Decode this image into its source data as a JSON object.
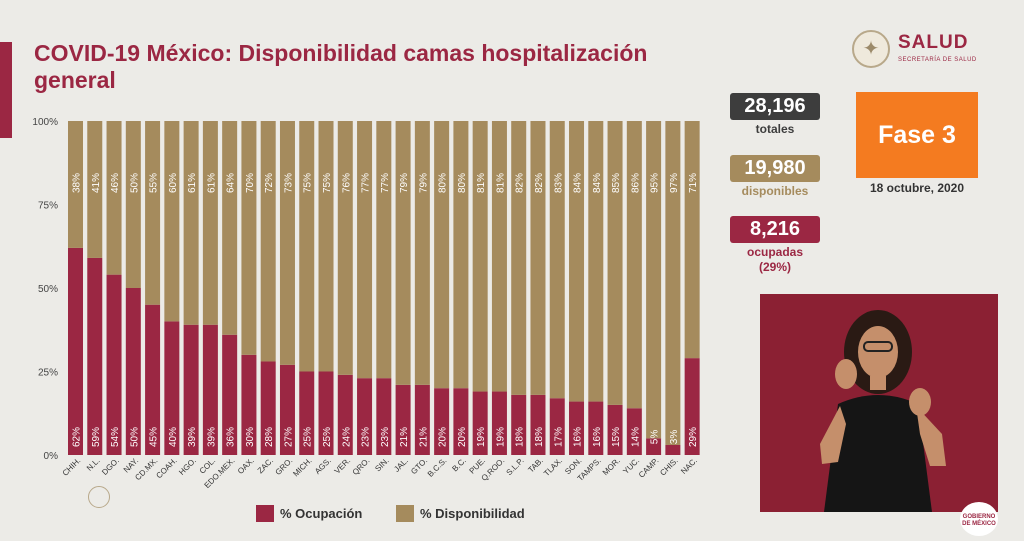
{
  "header": {
    "title": "COVID-19 México: Disponibilidad camas hospitalización general",
    "logo_name": "SALUD",
    "logo_sub": "SECRETARÍA DE SALUD"
  },
  "stats": {
    "totales_value": "28,196",
    "totales_label": "totales",
    "disponibles_value": "19,980",
    "disponibles_label": "disponibles",
    "ocupadas_value": "8,216",
    "ocupadas_label": "ocupadas",
    "ocupadas_pct": "(29%)"
  },
  "phase": {
    "label": "Fase 3",
    "date": "18 octubre, 2020"
  },
  "footer": {
    "emblem_text": "GOBIERNO DE MÉXICO"
  },
  "colors": {
    "ocupacion": "#9b2743",
    "disponibilidad": "#a58b5d",
    "accent_orange": "#f47b20",
    "dark_box": "#3d3d3d"
  },
  "chart_data": {
    "type": "bar",
    "stacked": true,
    "ylim": [
      0,
      100
    ],
    "yticks": [
      "0%",
      "25%",
      "50%",
      "75%",
      "100%"
    ],
    "categories": [
      "CHIH.",
      "N.L.",
      "DGO.",
      "NAY.",
      "CD.MX.",
      "COAH.",
      "HGO.",
      "COL.",
      "EDO.MEX.",
      "OAX.",
      "ZAC.",
      "GRO.",
      "MICH.",
      "AGS.",
      "VER.",
      "QRO.",
      "SIN.",
      "JAL.",
      "GTO.",
      "B.C.S.",
      "B.C.",
      "PUE.",
      "Q.ROO.",
      "S.L.P.",
      "TAB.",
      "TLAX.",
      "SON.",
      "TAMPS.",
      "MOR.",
      "YUC.",
      "CAMP.",
      "CHIS.",
      "NAC."
    ],
    "series": [
      {
        "name": "% Ocupación",
        "values": [
          62,
          59,
          54,
          50,
          45,
          40,
          39,
          39,
          36,
          30,
          28,
          27,
          25,
          25,
          24,
          23,
          23,
          21,
          21,
          20,
          20,
          19,
          19,
          18,
          18,
          17,
          16,
          16,
          15,
          14,
          5,
          3,
          29
        ]
      },
      {
        "name": "% Disponibilidad",
        "values": [
          38,
          41,
          46,
          50,
          55,
          60,
          61,
          61,
          64,
          70,
          72,
          73,
          75,
          75,
          76,
          77,
          77,
          79,
          79,
          80,
          80,
          81,
          81,
          82,
          82,
          83,
          84,
          84,
          85,
          86,
          95,
          97,
          71
        ]
      }
    ],
    "grid": false,
    "legend_position": "bottom"
  }
}
